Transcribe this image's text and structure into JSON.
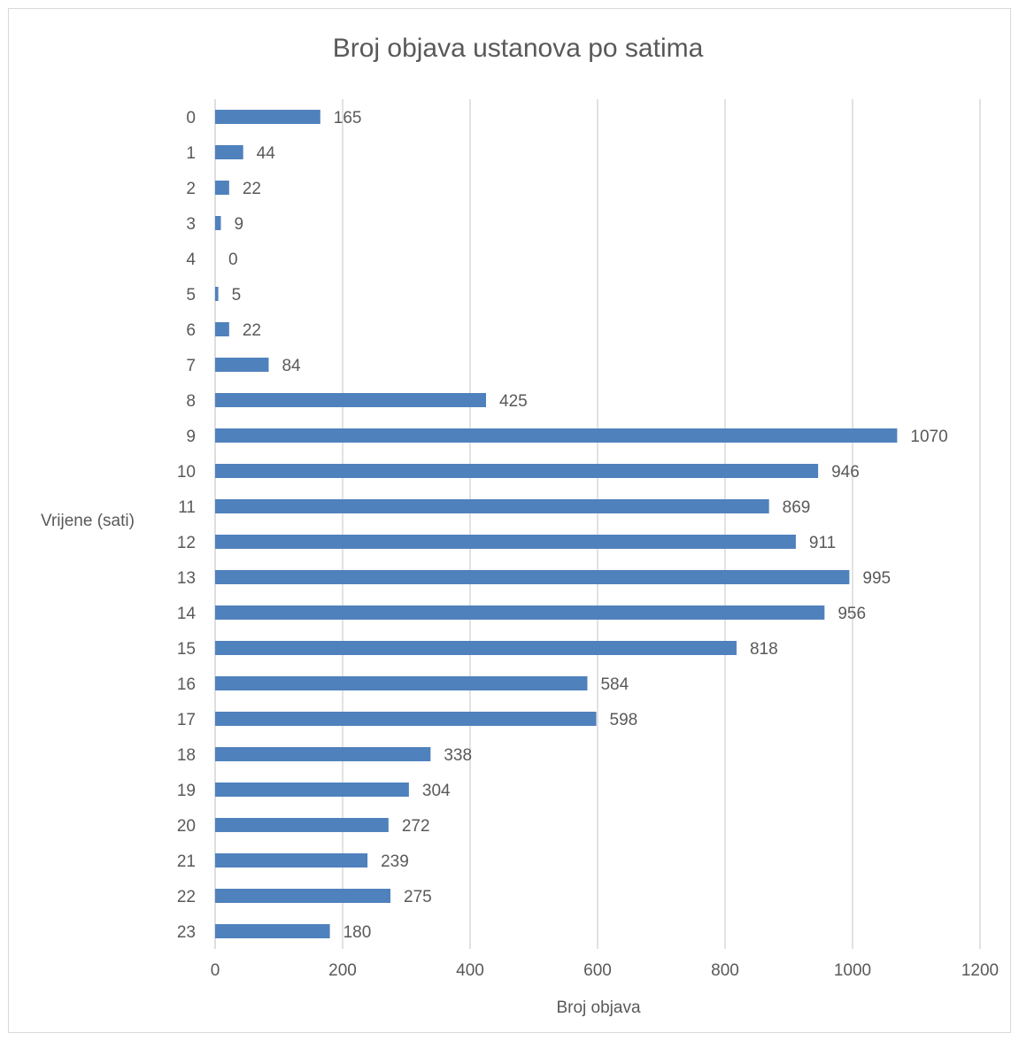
{
  "chart_data": {
    "type": "bar",
    "orientation": "horizontal",
    "title": "Broj objava ustanova po satima",
    "xlabel": "Broj objava",
    "ylabel": "Vrijene (sati)",
    "categories": [
      "0",
      "1",
      "2",
      "3",
      "4",
      "5",
      "6",
      "7",
      "8",
      "9",
      "10",
      "11",
      "12",
      "13",
      "14",
      "15",
      "16",
      "17",
      "18",
      "19",
      "20",
      "21",
      "22",
      "23"
    ],
    "values": [
      165,
      44,
      22,
      9,
      0,
      5,
      22,
      84,
      425,
      1070,
      946,
      869,
      911,
      995,
      956,
      818,
      584,
      598,
      338,
      304,
      272,
      239,
      275,
      180
    ],
    "xlim": [
      0,
      1200
    ],
    "xticks": [
      0,
      200,
      400,
      600,
      800,
      1000,
      1200
    ],
    "grid": true,
    "data_labels": true,
    "bar_color": "#4f81bd",
    "grid_color": "#d9d9d9"
  }
}
